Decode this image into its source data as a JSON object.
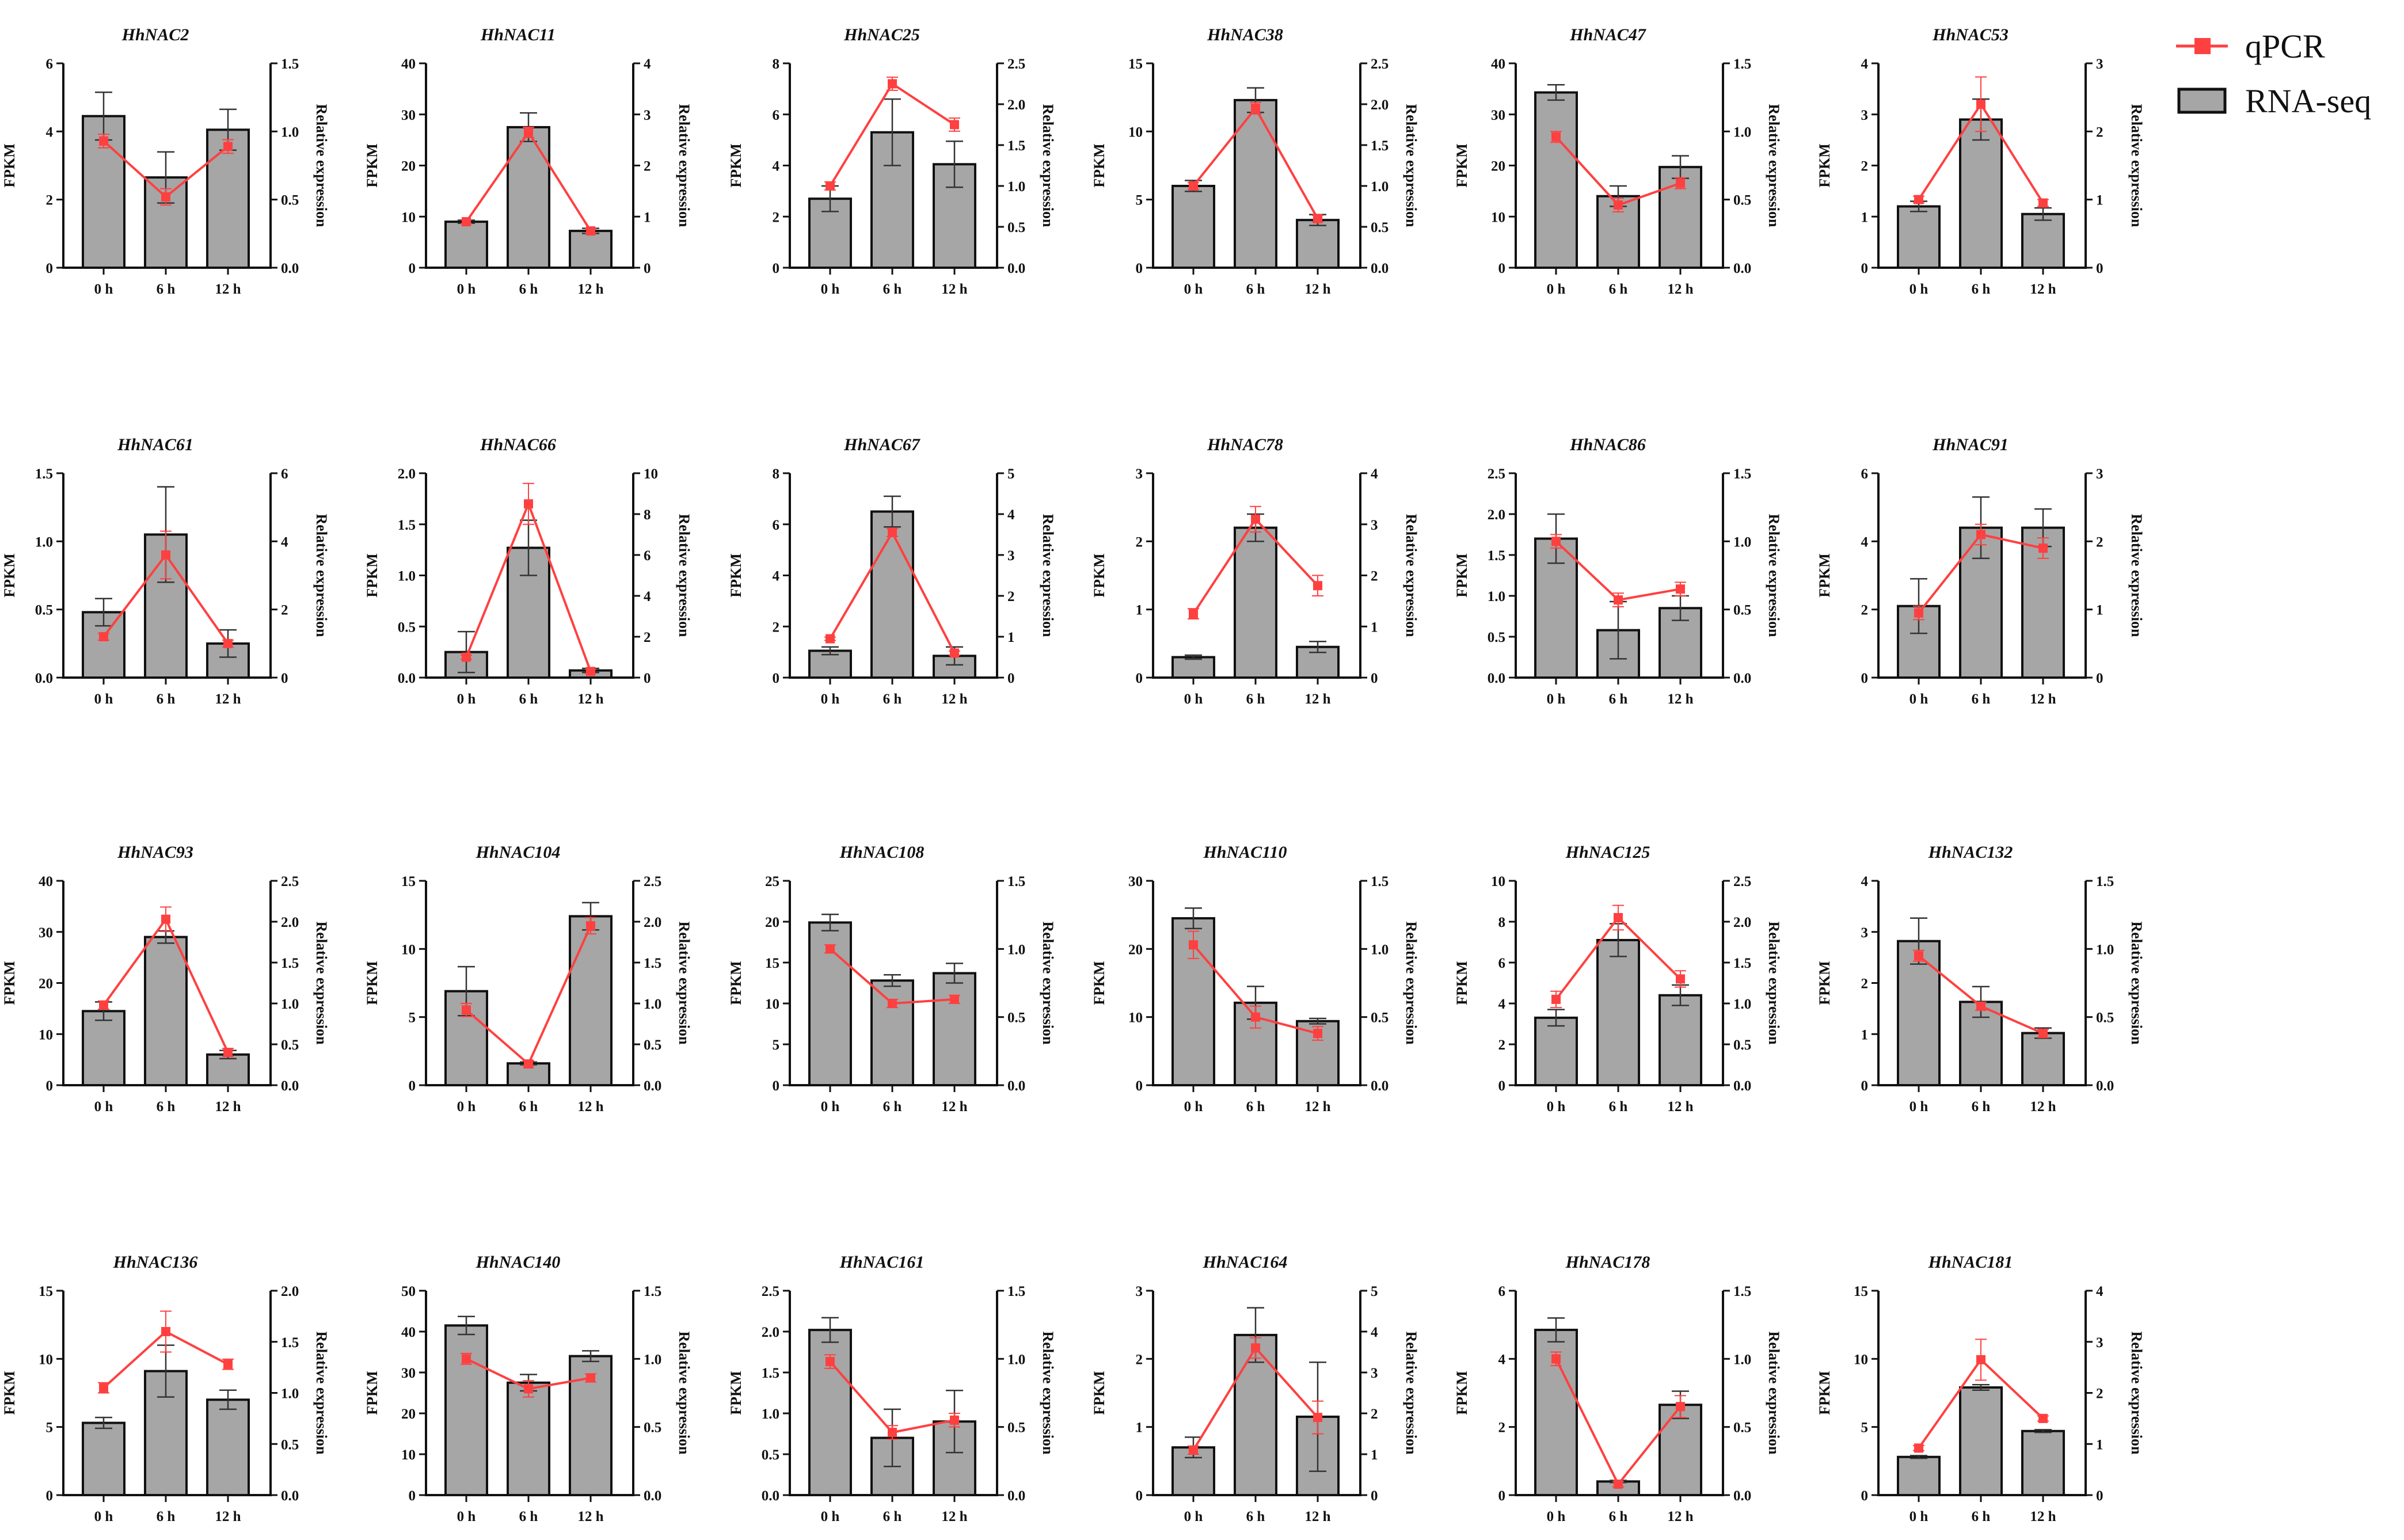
{
  "figure": {
    "legend": {
      "line_label": "qPCR",
      "bar_label": "RNA-seq"
    },
    "colors": {
      "bar_fill": "#a6a6a6",
      "bar_stroke": "#111111",
      "line": "#ff4040",
      "axis": "#111111"
    },
    "axis_labels": {
      "left": "FPKM",
      "right": "Relative expression"
    }
  },
  "chart_data": [
    {
      "title": "HhNAC2",
      "type": "bar+line",
      "categories": [
        "0 h",
        "6 h",
        "12 h"
      ],
      "bar_values": [
        4.45,
        2.65,
        4.05
      ],
      "bar_err": [
        0.7,
        0.75,
        0.6
      ],
      "line_values": [
        0.93,
        0.52,
        0.89
      ],
      "line_err": [
        0.05,
        0.06,
        0.05
      ],
      "ylim_left": [
        0,
        6
      ],
      "ticks_left": [
        "0",
        "2",
        "4",
        "6"
      ],
      "ylim_right": [
        0,
        1.5
      ],
      "ticks_right": [
        "0.0",
        "0.5",
        "1.0",
        "1.5"
      ]
    },
    {
      "title": "HhNAC11",
      "type": "bar+line",
      "categories": [
        "0 h",
        "6 h",
        "12 h"
      ],
      "bar_values": [
        9,
        27.5,
        7.2
      ],
      "bar_err": [
        0.3,
        2.8,
        0.5
      ],
      "line_values": [
        0.9,
        2.65,
        0.72
      ],
      "line_err": [
        0.04,
        0.1,
        0.04
      ],
      "ylim_left": [
        0,
        40
      ],
      "ticks_left": [
        "0",
        "10",
        "20",
        "30",
        "40"
      ],
      "ylim_right": [
        0,
        4
      ],
      "ticks_right": [
        "0",
        "1",
        "2",
        "3",
        "4"
      ]
    },
    {
      "title": "HhNAC25",
      "type": "bar+line",
      "categories": [
        "0 h",
        "6 h",
        "12 h"
      ],
      "bar_values": [
        2.7,
        5.3,
        4.05
      ],
      "bar_err": [
        0.5,
        1.3,
        0.9
      ],
      "line_values": [
        1.0,
        2.25,
        1.75
      ],
      "line_err": [
        0.05,
        0.08,
        0.08
      ],
      "ylim_left": [
        0,
        8
      ],
      "ticks_left": [
        "0",
        "2",
        "4",
        "6",
        "8"
      ],
      "ylim_right": [
        0,
        2.5
      ],
      "ticks_right": [
        "0.0",
        "0.5",
        "1.0",
        "1.5",
        "2.0",
        "2.5"
      ]
    },
    {
      "title": "HhNAC38",
      "type": "bar+line",
      "categories": [
        "0 h",
        "6 h",
        "12 h"
      ],
      "bar_values": [
        6,
        12.3,
        3.5
      ],
      "bar_err": [
        0.4,
        0.9,
        0.4
      ],
      "line_values": [
        1.0,
        1.95,
        0.6
      ],
      "line_err": [
        0.04,
        0.07,
        0.04
      ],
      "ylim_left": [
        0,
        15
      ],
      "ticks_left": [
        "0",
        "5",
        "10",
        "15"
      ],
      "ylim_right": [
        0,
        2.5
      ],
      "ticks_right": [
        "0.0",
        "0.5",
        "1.0",
        "1.5",
        "2.0",
        "2.5"
      ]
    },
    {
      "title": "HhNAC47",
      "type": "bar+line",
      "categories": [
        "0 h",
        "6 h",
        "12 h"
      ],
      "bar_values": [
        34.3,
        14,
        19.7
      ],
      "bar_err": [
        1.5,
        2.0,
        2.2
      ],
      "line_values": [
        0.96,
        0.46,
        0.62
      ],
      "line_err": [
        0.04,
        0.05,
        0.04
      ],
      "ylim_left": [
        0,
        40
      ],
      "ticks_left": [
        "0",
        "10",
        "20",
        "30",
        "40"
      ],
      "ylim_right": [
        0,
        1.5
      ],
      "ticks_right": [
        "0.0",
        "0.5",
        "1.0",
        "1.5"
      ]
    },
    {
      "title": "HhNAC53",
      "type": "bar+line",
      "categories": [
        "0 h",
        "6 h",
        "12 h"
      ],
      "bar_values": [
        1.2,
        2.9,
        1.05
      ],
      "bar_err": [
        0.1,
        0.4,
        0.12
      ],
      "line_values": [
        1.0,
        2.4,
        0.95
      ],
      "line_err": [
        0.05,
        0.4,
        0.05
      ],
      "ylim_left": [
        0,
        4
      ],
      "ticks_left": [
        "0",
        "1",
        "2",
        "3",
        "4"
      ],
      "ylim_right": [
        0,
        3
      ],
      "ticks_right": [
        "0",
        "1",
        "2",
        "3"
      ]
    },
    {
      "title": "HhNAC61",
      "type": "bar+line",
      "categories": [
        "0 h",
        "6 h",
        "12 h"
      ],
      "bar_values": [
        0.48,
        1.05,
        0.25
      ],
      "bar_err": [
        0.1,
        0.35,
        0.1
      ],
      "line_values": [
        1.2,
        3.6,
        1.0
      ],
      "line_err": [
        0.1,
        0.7,
        0.1
      ],
      "ylim_left": [
        0,
        1.5
      ],
      "ticks_left": [
        "0.0",
        "0.5",
        "1.0",
        "1.5"
      ],
      "ylim_right": [
        0,
        6
      ],
      "ticks_right": [
        "0",
        "2",
        "4",
        "6"
      ]
    },
    {
      "title": "HhNAC66",
      "type": "bar+line",
      "categories": [
        "0 h",
        "6 h",
        "12 h"
      ],
      "bar_values": [
        0.25,
        1.27,
        0.07
      ],
      "bar_err": [
        0.2,
        0.27,
        0.02
      ],
      "line_values": [
        1.0,
        8.5,
        0.3
      ],
      "line_err": [
        0.1,
        1.0,
        0.1
      ],
      "ylim_left": [
        0,
        2.0
      ],
      "ticks_left": [
        "0.0",
        "0.5",
        "1.0",
        "1.5",
        "2.0"
      ],
      "ylim_right": [
        0,
        10
      ],
      "ticks_right": [
        "0",
        "2",
        "4",
        "6",
        "8",
        "10"
      ]
    },
    {
      "title": "HhNAC67",
      "type": "bar+line",
      "categories": [
        "0 h",
        "6 h",
        "12 h"
      ],
      "bar_values": [
        1.05,
        6.5,
        0.85
      ],
      "bar_err": [
        0.15,
        0.6,
        0.35
      ],
      "line_values": [
        0.95,
        3.55,
        0.6
      ],
      "line_err": [
        0.04,
        0.1,
        0.05
      ],
      "ylim_left": [
        0,
        8
      ],
      "ticks_left": [
        "0",
        "2",
        "4",
        "6",
        "8"
      ],
      "ylim_right": [
        0,
        5
      ],
      "ticks_right": [
        "0",
        "1",
        "2",
        "3",
        "4",
        "5"
      ]
    },
    {
      "title": "HhNAC78",
      "type": "bar+line",
      "categories": [
        "0 h",
        "6 h",
        "12 h"
      ],
      "bar_values": [
        0.3,
        2.2,
        0.45
      ],
      "bar_err": [
        0.03,
        0.2,
        0.08
      ],
      "line_values": [
        1.25,
        3.1,
        1.8
      ],
      "line_err": [
        0.1,
        0.25,
        0.2
      ],
      "ylim_left": [
        0,
        3
      ],
      "ticks_left": [
        "0",
        "1",
        "2",
        "3"
      ],
      "ylim_right": [
        0,
        4
      ],
      "ticks_right": [
        "0",
        "1",
        "2",
        "3",
        "4"
      ]
    },
    {
      "title": "HhNAC86",
      "type": "bar+line",
      "categories": [
        "0 h",
        "6 h",
        "12 h"
      ],
      "bar_values": [
        1.7,
        0.58,
        0.85
      ],
      "bar_err": [
        0.3,
        0.35,
        0.15
      ],
      "line_values": [
        1.0,
        0.57,
        0.65
      ],
      "line_err": [
        0.05,
        0.05,
        0.05
      ],
      "ylim_left": [
        0,
        2.5
      ],
      "ticks_left": [
        "0.0",
        "0.5",
        "1.0",
        "1.5",
        "2.0",
        "2.5"
      ],
      "ylim_right": [
        0,
        1.5
      ],
      "ticks_right": [
        "0.0",
        "0.5",
        "1.0",
        "1.5"
      ]
    },
    {
      "title": "HhNAC91",
      "type": "bar+line",
      "categories": [
        "0 h",
        "6 h",
        "12 h"
      ],
      "bar_values": [
        2.1,
        4.4,
        4.4
      ],
      "bar_err": [
        0.8,
        0.9,
        0.55
      ],
      "line_values": [
        0.95,
        2.1,
        1.9
      ],
      "line_err": [
        0.1,
        0.15,
        0.15
      ],
      "ylim_left": [
        0,
        6
      ],
      "ticks_left": [
        "0",
        "2",
        "4",
        "6"
      ],
      "ylim_right": [
        0,
        3
      ],
      "ticks_right": [
        "0",
        "1",
        "2",
        "3"
      ]
    },
    {
      "title": "HhNAC93",
      "type": "bar+line",
      "categories": [
        "0 h",
        "6 h",
        "12 h"
      ],
      "bar_values": [
        14.5,
        29,
        6
      ],
      "bar_err": [
        1.8,
        1.2,
        0.8
      ],
      "line_values": [
        0.98,
        2.03,
        0.4
      ],
      "line_err": [
        0.05,
        0.15,
        0.05
      ],
      "ylim_left": [
        0,
        40
      ],
      "ticks_left": [
        "0",
        "10",
        "20",
        "30",
        "40"
      ],
      "ylim_right": [
        0,
        2.5
      ],
      "ticks_right": [
        "0.0",
        "0.5",
        "1.0",
        "1.5",
        "2.0",
        "2.5"
      ]
    },
    {
      "title": "HhNAC104",
      "type": "bar+line",
      "categories": [
        "0 h",
        "6 h",
        "12 h"
      ],
      "bar_values": [
        6.9,
        1.6,
        12.4
      ],
      "bar_err": [
        1.8,
        0.1,
        1.0
      ],
      "line_values": [
        0.92,
        0.26,
        1.95
      ],
      "line_err": [
        0.08,
        0.04,
        0.1
      ],
      "ylim_left": [
        0,
        15
      ],
      "ticks_left": [
        "0",
        "5",
        "10",
        "15"
      ],
      "ylim_right": [
        0,
        2.5
      ],
      "ticks_right": [
        "0.0",
        "0.5",
        "1.0",
        "1.5",
        "2.0",
        "2.5"
      ]
    },
    {
      "title": "HhNAC108",
      "type": "bar+line",
      "categories": [
        "0 h",
        "6 h",
        "12 h"
      ],
      "bar_values": [
        19.9,
        12.8,
        13.7
      ],
      "bar_err": [
        1.0,
        0.7,
        1.2
      ],
      "line_values": [
        1.0,
        0.6,
        0.63
      ],
      "line_err": [
        0.03,
        0.03,
        0.03
      ],
      "ylim_left": [
        0,
        25
      ],
      "ticks_left": [
        "0",
        "5",
        "10",
        "15",
        "20",
        "25"
      ],
      "ylim_right": [
        0,
        1.5
      ],
      "ticks_right": [
        "0.0",
        "0.5",
        "1.0",
        "1.5"
      ]
    },
    {
      "title": "HhNAC110",
      "type": "bar+line",
      "categories": [
        "0 h",
        "6 h",
        "12 h"
      ],
      "bar_values": [
        24.5,
        12.1,
        9.4
      ],
      "bar_err": [
        1.5,
        2.4,
        0.4
      ],
      "line_values": [
        1.03,
        0.5,
        0.38
      ],
      "line_err": [
        0.1,
        0.08,
        0.05
      ],
      "ylim_left": [
        0,
        30
      ],
      "ticks_left": [
        "0",
        "10",
        "20",
        "30"
      ],
      "ylim_right": [
        0,
        1.5
      ],
      "ticks_right": [
        "0.0",
        "0.5",
        "1.0",
        "1.5"
      ]
    },
    {
      "title": "HhNAC125",
      "type": "bar+line",
      "categories": [
        "0 h",
        "6 h",
        "12 h"
      ],
      "bar_values": [
        3.3,
        7.1,
        4.4
      ],
      "bar_err": [
        0.4,
        0.8,
        0.5
      ],
      "line_values": [
        1.05,
        2.05,
        1.3
      ],
      "line_err": [
        0.1,
        0.15,
        0.1
      ],
      "ylim_left": [
        0,
        10
      ],
      "ticks_left": [
        "0",
        "2",
        "4",
        "6",
        "8",
        "10"
      ],
      "ylim_right": [
        0,
        2.5
      ],
      "ticks_right": [
        "0.0",
        "0.5",
        "1.0",
        "1.5",
        "2.0",
        "2.5"
      ]
    },
    {
      "title": "HhNAC132",
      "type": "bar+line",
      "categories": [
        "0 h",
        "6 h",
        "12 h"
      ],
      "bar_values": [
        2.82,
        1.63,
        1.02
      ],
      "bar_err": [
        0.45,
        0.3,
        0.1
      ],
      "line_values": [
        0.95,
        0.58,
        0.38
      ],
      "line_err": [
        0.04,
        0.03,
        0.03
      ],
      "ylim_left": [
        0,
        4
      ],
      "ticks_left": [
        "0",
        "1",
        "2",
        "3",
        "4"
      ],
      "ylim_right": [
        0,
        1.5
      ],
      "ticks_right": [
        "0.0",
        "0.5",
        "1.0",
        "1.5"
      ]
    },
    {
      "title": "HhNAC136",
      "type": "bar+line",
      "categories": [
        "0 h",
        "6 h",
        "12 h"
      ],
      "bar_values": [
        5.3,
        9.1,
        7
      ],
      "bar_err": [
        0.4,
        1.9,
        0.7
      ],
      "line_values": [
        1.05,
        1.6,
        1.28
      ],
      "line_err": [
        0.05,
        0.2,
        0.05
      ],
      "ylim_left": [
        0,
        15
      ],
      "ticks_left": [
        "0",
        "5",
        "10",
        "15"
      ],
      "ylim_right": [
        0,
        2.0
      ],
      "ticks_right": [
        "0.0",
        "0.5",
        "1.0",
        "1.5",
        "2.0"
      ]
    },
    {
      "title": "HhNAC140",
      "type": "bar+line",
      "categories": [
        "0 h",
        "6 h",
        "12 h"
      ],
      "bar_values": [
        41.5,
        27.5,
        34
      ],
      "bar_err": [
        2.2,
        2.0,
        1.3
      ],
      "line_values": [
        1.0,
        0.78,
        0.86
      ],
      "line_err": [
        0.04,
        0.06,
        0.03
      ],
      "ylim_left": [
        0,
        50
      ],
      "ticks_left": [
        "0",
        "10",
        "20",
        "30",
        "40",
        "50"
      ],
      "ylim_right": [
        0,
        1.5
      ],
      "ticks_right": [
        "0.0",
        "0.5",
        "1.0",
        "1.5"
      ]
    },
    {
      "title": "HhNAC161",
      "type": "bar+line",
      "categories": [
        "0 h",
        "6 h",
        "12 h"
      ],
      "bar_values": [
        2.02,
        0.7,
        0.9
      ],
      "bar_err": [
        0.15,
        0.35,
        0.38
      ],
      "line_values": [
        0.98,
        0.46,
        0.55
      ],
      "line_err": [
        0.05,
        0.05,
        0.05
      ],
      "ylim_left": [
        0,
        2.5
      ],
      "ticks_left": [
        "0.0",
        "0.5",
        "1.0",
        "1.5",
        "2.0",
        "2.5"
      ],
      "ylim_right": [
        0,
        1.5
      ],
      "ticks_right": [
        "0.0",
        "0.5",
        "1.0",
        "1.5"
      ]
    },
    {
      "title": "HhNAC164",
      "type": "bar+line",
      "categories": [
        "0 h",
        "6 h",
        "12 h"
      ],
      "bar_values": [
        0.7,
        2.35,
        1.15
      ],
      "bar_err": [
        0.15,
        0.4,
        0.8
      ],
      "line_values": [
        1.1,
        3.6,
        1.9
      ],
      "line_err": [
        0.1,
        0.25,
        0.4
      ],
      "ylim_left": [
        0,
        3
      ],
      "ticks_left": [
        "0",
        "1",
        "2",
        "3"
      ],
      "ylim_right": [
        0,
        5
      ],
      "ticks_right": [
        "0",
        "1",
        "2",
        "3",
        "4",
        "5"
      ]
    },
    {
      "title": "HhNAC178",
      "type": "bar+line",
      "categories": [
        "0 h",
        "6 h",
        "12 h"
      ],
      "bar_values": [
        4.85,
        0.4,
        2.65
      ],
      "bar_err": [
        0.35,
        0.03,
        0.4
      ],
      "line_values": [
        1.0,
        0.08,
        0.65
      ],
      "line_err": [
        0.05,
        0.02,
        0.08
      ],
      "ylim_left": [
        0,
        6
      ],
      "ticks_left": [
        "0",
        "2",
        "4",
        "6"
      ],
      "ylim_right": [
        0,
        1.5
      ],
      "ticks_right": [
        "0.0",
        "0.5",
        "1.0",
        "1.5"
      ]
    },
    {
      "title": "HhNAC181",
      "type": "bar+line",
      "categories": [
        "0 h",
        "6 h",
        "12 h"
      ],
      "bar_values": [
        2.8,
        7.9,
        4.7
      ],
      "bar_err": [
        0.1,
        0.2,
        0.1
      ],
      "line_values": [
        0.92,
        2.65,
        1.5
      ],
      "line_err": [
        0.05,
        0.4,
        0.05
      ],
      "ylim_left": [
        0,
        15
      ],
      "ticks_left": [
        "0",
        "5",
        "10",
        "15"
      ],
      "ylim_right": [
        0,
        4
      ],
      "ticks_right": [
        "0",
        "1",
        "2",
        "3",
        "4"
      ]
    }
  ]
}
